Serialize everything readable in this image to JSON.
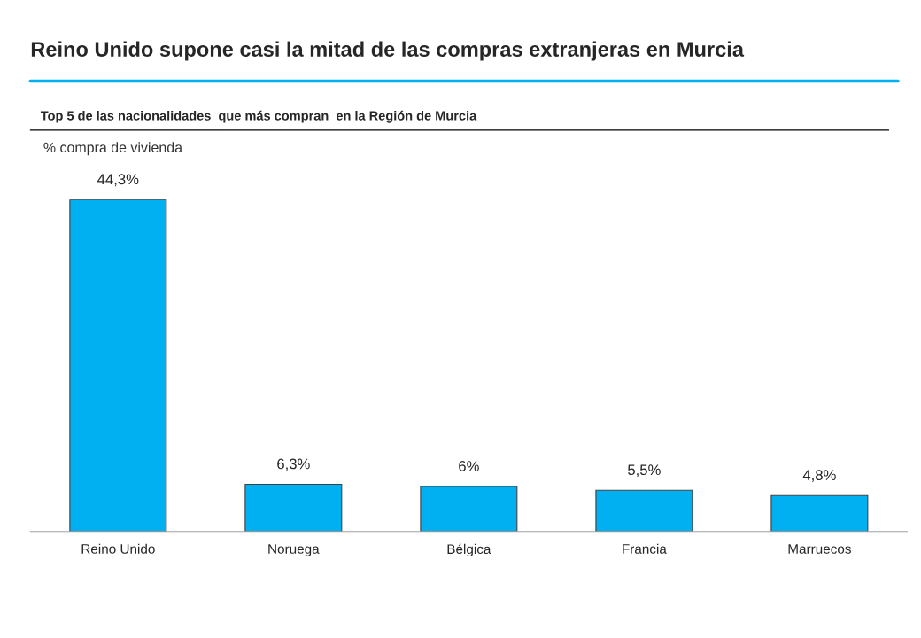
{
  "chart_data": {
    "type": "bar",
    "title": "Reino Unido supone casi la mitad de las compras extranjeras en Murcia",
    "subtitle": "Top 5 de las nacionalidades  que más compran  en la Región de Murcia",
    "ylabel": "% compra de vivienda",
    "categories": [
      "Reino Unido",
      "Noruega",
      "Bélgica",
      "Francia",
      "Marruecos"
    ],
    "values": [
      44.3,
      6.3,
      6,
      5.5,
      4.8
    ],
    "value_labels": [
      "44,3%",
      "6,3%",
      "6%",
      "5,5%",
      "4,8%"
    ],
    "color": "#00b0f0",
    "grid": false,
    "legend": false
  }
}
